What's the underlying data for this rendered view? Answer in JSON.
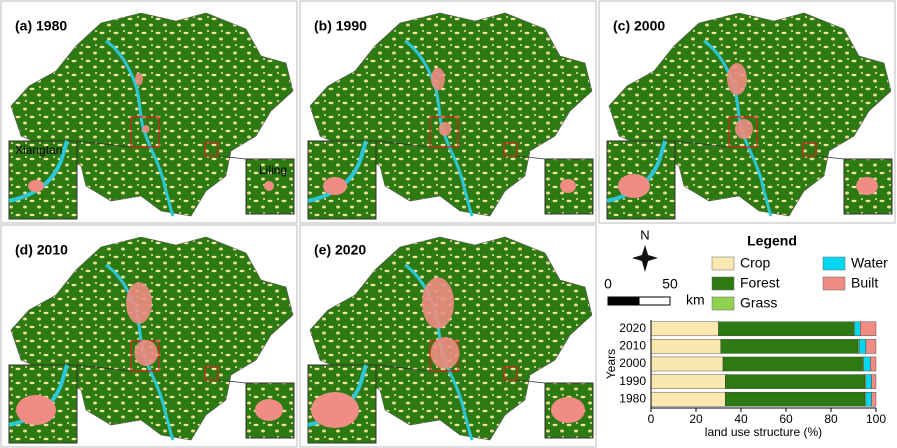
{
  "panels": [
    {
      "label": "(a) 1980"
    },
    {
      "label": "(b) 1990"
    },
    {
      "label": "(c) 2000"
    },
    {
      "label": "(d) 2010"
    },
    {
      "label": "(e) 2020"
    }
  ],
  "map_labels": [
    "Xiangtan",
    "Liling"
  ],
  "north": "N",
  "scale_bar": {
    "ticks": [
      0,
      50
    ],
    "unit": "km"
  },
  "chart_data": {
    "type": "stacked_barh",
    "legend_title": "Legend",
    "categories": [
      "1980",
      "1990",
      "2000",
      "2010",
      "2020"
    ],
    "series": [
      {
        "name": "Crop",
        "color": "#fbe8b0",
        "values": [
          33,
          33,
          32,
          31,
          30
        ]
      },
      {
        "name": "Forest",
        "color": "#2d7a12",
        "values": [
          62,
          62,
          62,
          61,
          60
        ]
      },
      {
        "name": "Grass",
        "color": "#92d050",
        "values": [
          0.5,
          0.5,
          0.5,
          0.5,
          0.5
        ]
      },
      {
        "name": "Water",
        "color": "#00d7f0",
        "values": [
          2.5,
          2.5,
          3,
          3,
          2.5
        ]
      },
      {
        "name": "Built",
        "color": "#f08c84",
        "values": [
          2,
          2,
          2.5,
          4.5,
          7
        ]
      }
    ],
    "xlabel": "land use structure (%)",
    "ylabel": "Years",
    "xlim": [
      0,
      100
    ],
    "xticks": [
      0,
      20,
      40,
      60,
      80,
      100
    ]
  }
}
